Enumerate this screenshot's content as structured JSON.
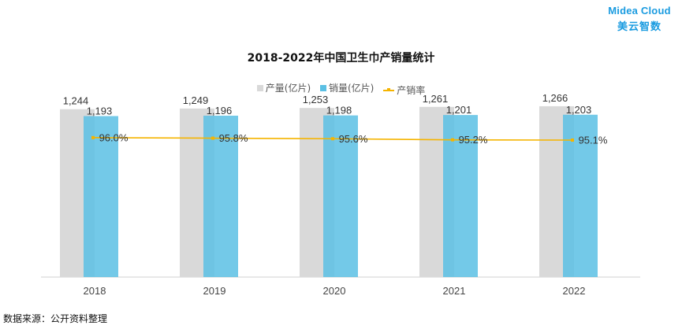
{
  "logo": {
    "brand": "Midea Cloud",
    "subtitle": "美云智数"
  },
  "source_note": "数据来源：公开资料整理",
  "colors": {
    "production": "#d9d9d9",
    "sales": "#5bc0e4",
    "rate": "#f5b400"
  },
  "chart_data": {
    "type": "bar",
    "title": "2018-2022年中国卫生巾产销量统计",
    "categories": [
      "2018",
      "2019",
      "2020",
      "2021",
      "2022"
    ],
    "series": [
      {
        "name": "产量(亿片)",
        "type": "bar",
        "values": [
          1244,
          1249,
          1253,
          1261,
          1266
        ],
        "labels": [
          "1,244",
          "1,249",
          "1,253",
          "1,261",
          "1,266"
        ]
      },
      {
        "name": "销量(亿片)",
        "type": "bar",
        "values": [
          1193,
          1196,
          1198,
          1201,
          1203
        ],
        "labels": [
          "1,193",
          "1,196",
          "1,198",
          "1,201",
          "1,203"
        ]
      },
      {
        "name": "产销率",
        "type": "line",
        "values": [
          96.0,
          95.8,
          95.6,
          95.2,
          95.1
        ],
        "labels": [
          "96.0%",
          "95.8%",
          "95.6%",
          "95.2%",
          "95.1%"
        ]
      }
    ],
    "ylim": [
      0,
      1400
    ],
    "legend_position": "top-center",
    "grid": false
  }
}
